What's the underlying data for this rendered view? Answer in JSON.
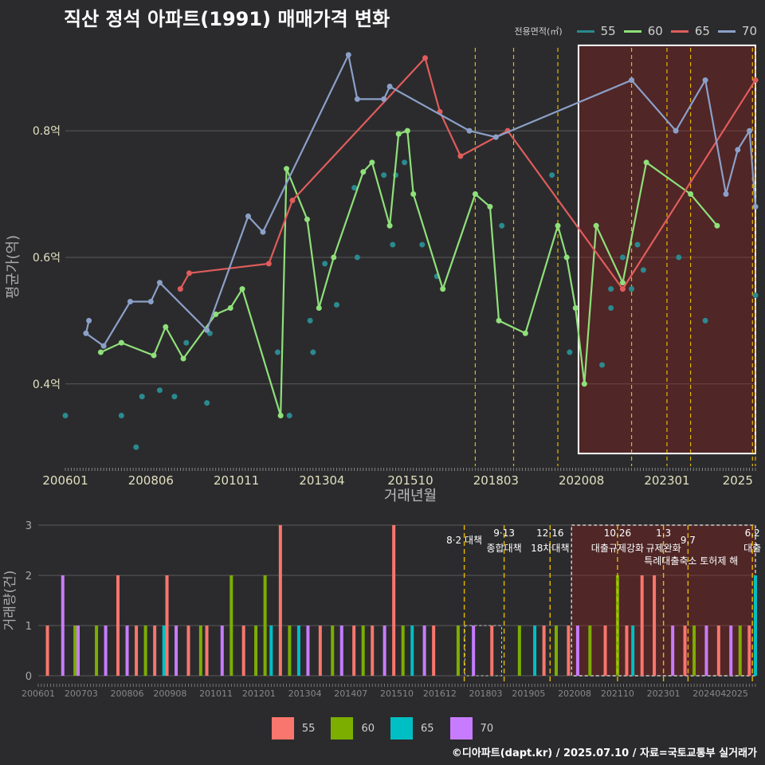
{
  "title": "직산 정석 아파트(1991) 매매가격 변화",
  "credit": "©디아파트(dapt.kr) / 2025.07.10 / 자료=국토교통부 실거래가",
  "legend_title": "전용면적(㎡)",
  "colors": {
    "bg": "#2b2b2d",
    "grid": "#5a5a5a",
    "t55": "#2a8a8f",
    "t60": "#8fe07a",
    "t65": "#e05c5c",
    "t70": "#8ba0c8",
    "b55": "#f8766d",
    "b60": "#7cae00",
    "b65": "#00bfc4",
    "b70": "#c77cff",
    "vline": "#e6b800"
  },
  "chart_data": [
    {
      "type": "line",
      "xlabel": "거래년월",
      "ylabel": "평균가(억)",
      "xticks": [
        "200601",
        "200806",
        "201011",
        "201304",
        "201510",
        "201803",
        "202008",
        "202301",
        "2025"
      ],
      "yticks": [
        {
          "v": 0.4,
          "label": "0.4억"
        },
        {
          "v": 0.6,
          "label": "0.6억"
        },
        {
          "v": 0.8,
          "label": "0.8억"
        }
      ],
      "ylim": [
        0.27,
        0.95
      ],
      "policy_dates": [
        "2017-08",
        "2018-09",
        "2019-12",
        "2022-01",
        "2023-01",
        "2023-09",
        "2025-06",
        "2025-07"
      ],
      "highlight": [
        "2020-07",
        "2025-07"
      ],
      "series": [
        {
          "name": "55",
          "color": "#2a8a8f",
          "points": [
            [
              "2006-01",
              0.35
            ],
            [
              "2007-08",
              0.35
            ],
            [
              "2008-01",
              0.3
            ],
            [
              "2008-03",
              0.38
            ],
            [
              "2009-02",
              0.38
            ],
            [
              "2010-01",
              0.37
            ],
            [
              "2010-02",
              0.48
            ],
            [
              "2008-09",
              0.39
            ],
            [
              "2009-06",
              0.465
            ],
            [
              "2012-02",
              0.35
            ],
            [
              "2012-01",
              0.45
            ],
            [
              "2012-05",
              0.35
            ],
            [
              "2013-01",
              0.45
            ],
            [
              "2012-12",
              0.5
            ],
            [
              "2013-05",
              0.59
            ],
            [
              "2013-09",
              0.525
            ],
            [
              "2014-03",
              0.71
            ],
            [
              "2014-04",
              0.6
            ],
            [
              "2015-01",
              0.73
            ],
            [
              "2015-04",
              0.62
            ],
            [
              "2015-05",
              0.73
            ],
            [
              "2015-08",
              0.75
            ],
            [
              "2016-02",
              0.62
            ],
            [
              "2016-07",
              0.57
            ],
            [
              "2018-05",
              0.65
            ],
            [
              "2019-10",
              0.73
            ],
            [
              "2020-04",
              0.45
            ],
            [
              "2021-03",
              0.43
            ],
            [
              "2021-06",
              0.52
            ],
            [
              "2021-06",
              0.55
            ],
            [
              "2021-10",
              0.6
            ],
            [
              "2022-01",
              0.55
            ],
            [
              "2022-03",
              0.62
            ],
            [
              "2022-05",
              0.58
            ],
            [
              "2023-05",
              0.6
            ],
            [
              "2024-02",
              0.5
            ],
            [
              "2025-07",
              0.54
            ]
          ]
        },
        {
          "name": "60",
          "color": "#8fe07a",
          "points": [
            [
              "2007-01",
              0.45
            ],
            [
              "2007-08",
              0.465
            ],
            [
              "2008-07",
              0.445
            ],
            [
              "2008-11",
              0.49
            ],
            [
              "2009-05",
              0.44
            ],
            [
              "2010-04",
              0.51
            ],
            [
              "2010-09",
              0.52
            ],
            [
              "2011-01",
              0.55
            ],
            [
              "2012-02",
              0.35
            ],
            [
              "2012-04",
              0.74
            ],
            [
              "2012-11",
              0.66
            ],
            [
              "2013-03",
              0.52
            ],
            [
              "2013-08",
              0.6
            ],
            [
              "2014-06",
              0.735
            ],
            [
              "2014-09",
              0.75
            ],
            [
              "2015-03",
              0.65
            ],
            [
              "2015-06",
              0.795
            ],
            [
              "2015-09",
              0.8
            ],
            [
              "2015-11",
              0.7
            ],
            [
              "2016-09",
              0.55
            ],
            [
              "2017-08",
              0.7
            ],
            [
              "2018-01",
              0.68
            ],
            [
              "2018-04",
              0.5
            ],
            [
              "2019-01",
              0.48
            ],
            [
              "2019-12",
              0.65
            ],
            [
              "2020-03",
              0.6
            ],
            [
              "2020-06",
              0.52
            ],
            [
              "2020-09",
              0.4
            ],
            [
              "2021-01",
              0.65
            ],
            [
              "2021-10",
              0.56
            ],
            [
              "2022-06",
              0.75
            ],
            [
              "2023-09",
              0.7
            ],
            [
              "2024-06",
              0.65
            ]
          ]
        },
        {
          "name": "65",
          "color": "#e05c5c",
          "points": [
            [
              "2009-04",
              0.55
            ],
            [
              "2009-07",
              0.575
            ],
            [
              "2011-10",
              0.59
            ],
            [
              "2012-06",
              0.69
            ],
            [
              "2016-03",
              0.915
            ],
            [
              "2016-08",
              0.83
            ],
            [
              "2017-03",
              0.76
            ],
            [
              "2018-07",
              0.8
            ],
            [
              "2021-10",
              0.55
            ],
            [
              "2025-07",
              0.88
            ]
          ]
        },
        {
          "name": "70",
          "color": "#8ba0c8",
          "points": [
            [
              "2006-09",
              0.5
            ],
            [
              "2006-08",
              0.48
            ],
            [
              "2007-02",
              0.46
            ],
            [
              "2007-11",
              0.53
            ],
            [
              "2008-06",
              0.53
            ],
            [
              "2008-09",
              0.56
            ],
            [
              "2010-01",
              0.485
            ],
            [
              "2011-03",
              0.665
            ],
            [
              "2011-08",
              0.64
            ],
            [
              "2014-01",
              0.92
            ],
            [
              "2014-04",
              0.85
            ],
            [
              "2015-01",
              0.85
            ],
            [
              "2015-03",
              0.87
            ],
            [
              "2017-06",
              0.8
            ],
            [
              "2018-03",
              0.79
            ],
            [
              "2022-01",
              0.88
            ],
            [
              "2023-04",
              0.8
            ],
            [
              "2024-02",
              0.88
            ],
            [
              "2024-09",
              0.7
            ],
            [
              "2025-01",
              0.77
            ],
            [
              "2025-05",
              0.8
            ],
            [
              "2025-07",
              0.68
            ]
          ]
        }
      ]
    },
    {
      "type": "bar",
      "xlabel": "",
      "ylabel": "거래량(건)",
      "xticks": [
        "200601",
        "200703",
        "200806",
        "200908",
        "201011",
        "201201",
        "201304",
        "201407",
        "201510",
        "201612",
        "201803",
        "201905",
        "202008",
        "202110",
        "202301",
        "202404",
        "2025"
      ],
      "yticks": [
        0,
        1,
        2,
        3
      ],
      "ylim": [
        0,
        3
      ],
      "policy_labels": [
        {
          "date": "2017-08",
          "row1": "",
          "row2": "8·2 대책"
        },
        {
          "date": "2018-09",
          "row1": "9·13",
          "row2": "종합대책"
        },
        {
          "date": "2019-12",
          "row1": "12·16",
          "row2": "18차대책"
        },
        {
          "date": "2021-10",
          "row1": "10.26",
          "row2": "대출규제강화"
        },
        {
          "date": "2023-01",
          "row1": "1.3",
          "row2": "규제완화"
        },
        {
          "date": "2023-09",
          "row1": "",
          "row2": "9.7"
        },
        {
          "date": "2023-10",
          "row1": "",
          "row2": "특례대출축소 토허제 해"
        },
        {
          "date": "2025-06",
          "row1": "6.2",
          "row2": "대출"
        }
      ],
      "bars": [
        [
          "2006-04",
          1,
          "55"
        ],
        [
          "2006-09",
          2,
          "70"
        ],
        [
          "2007-01",
          1,
          "60"
        ],
        [
          "2007-02",
          1,
          "70"
        ],
        [
          "2007-08",
          1,
          "60"
        ],
        [
          "2007-11",
          1,
          "70"
        ],
        [
          "2008-03",
          2,
          "55"
        ],
        [
          "2008-06",
          1,
          "70"
        ],
        [
          "2008-09",
          1,
          "55"
        ],
        [
          "2008-12",
          1,
          "60"
        ],
        [
          "2009-03",
          1,
          "55"
        ],
        [
          "2009-06",
          1,
          "65"
        ],
        [
          "2009-07",
          2,
          "55"
        ],
        [
          "2009-10",
          1,
          "70"
        ],
        [
          "2010-02",
          1,
          "55"
        ],
        [
          "2010-06",
          1,
          "60"
        ],
        [
          "2010-08",
          1,
          "55"
        ],
        [
          "2011-01",
          1,
          "70"
        ],
        [
          "2011-04",
          2,
          "60"
        ],
        [
          "2011-08",
          1,
          "55"
        ],
        [
          "2011-12",
          1,
          "60"
        ],
        [
          "2012-03",
          2,
          "60"
        ],
        [
          "2012-05",
          1,
          "65"
        ],
        [
          "2012-08",
          3,
          "55"
        ],
        [
          "2012-11",
          1,
          "60"
        ],
        [
          "2013-02",
          1,
          "65"
        ],
        [
          "2013-05",
          1,
          "70"
        ],
        [
          "2013-09",
          1,
          "55"
        ],
        [
          "2014-01",
          1,
          "60"
        ],
        [
          "2014-04",
          1,
          "70"
        ],
        [
          "2014-08",
          1,
          "55"
        ],
        [
          "2014-11",
          1,
          "60"
        ],
        [
          "2015-02",
          1,
          "55"
        ],
        [
          "2015-06",
          1,
          "70"
        ],
        [
          "2015-09",
          3,
          "55"
        ],
        [
          "2015-12",
          1,
          "60"
        ],
        [
          "2016-03",
          1,
          "65"
        ],
        [
          "2016-07",
          1,
          "70"
        ],
        [
          "2016-10",
          1,
          "55"
        ],
        [
          "2017-06",
          1,
          "60"
        ],
        [
          "2017-11",
          1,
          "70"
        ],
        [
          "2018-05",
          1,
          "55"
        ],
        [
          "2019-02",
          1,
          "60"
        ],
        [
          "2019-07",
          1,
          "65"
        ],
        [
          "2019-10",
          1,
          "55"
        ],
        [
          "2020-02",
          1,
          "60"
        ],
        [
          "2020-06",
          1,
          "55"
        ],
        [
          "2020-09",
          1,
          "70"
        ],
        [
          "2021-01",
          1,
          "60"
        ],
        [
          "2021-06",
          1,
          "55"
        ],
        [
          "2021-10",
          2,
          "60"
        ],
        [
          "2022-01",
          1,
          "55"
        ],
        [
          "2022-03",
          1,
          "65"
        ],
        [
          "2022-06",
          2,
          "55"
        ],
        [
          "2022-10",
          2,
          "55"
        ],
        [
          "2023-04",
          1,
          "70"
        ],
        [
          "2023-08",
          1,
          "55"
        ],
        [
          "2023-11",
          1,
          "60"
        ],
        [
          "2024-03",
          1,
          "70"
        ],
        [
          "2024-07",
          1,
          "55"
        ],
        [
          "2024-11",
          1,
          "70"
        ],
        [
          "2025-02",
          1,
          "60"
        ],
        [
          "2025-05",
          1,
          "55"
        ],
        [
          "2025-07",
          2,
          "65"
        ]
      ]
    }
  ],
  "legend": [
    {
      "name": "55"
    },
    {
      "name": "60"
    },
    {
      "name": "65"
    },
    {
      "name": "70"
    }
  ]
}
